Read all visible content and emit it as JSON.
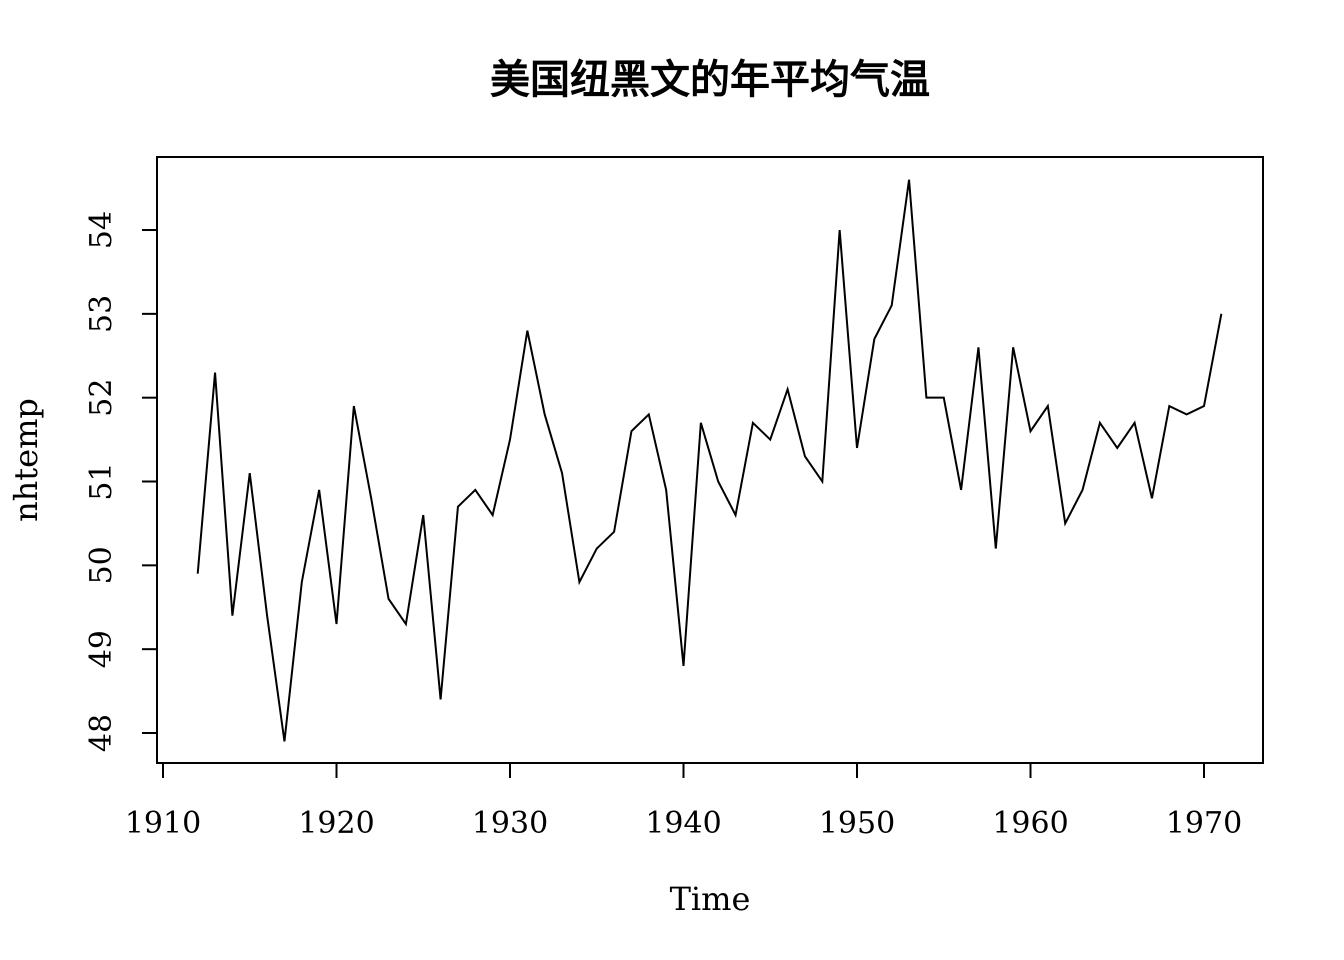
{
  "chart_data": {
    "type": "line",
    "title": "美国纽黑文的年平均气温",
    "xlabel": "Time",
    "ylabel": "nhtemp",
    "xlim": [
      1912,
      1971
    ],
    "ylim": [
      47.9,
      54.6
    ],
    "x_ticks": [
      "1910",
      "1920",
      "1930",
      "1940",
      "1950",
      "1960",
      "1970"
    ],
    "y_ticks": [
      "48",
      "49",
      "50",
      "51",
      "52",
      "53",
      "54"
    ],
    "grid": false,
    "series": [
      {
        "x": [
          1912,
          1913,
          1914,
          1915,
          1916,
          1917,
          1918,
          1919,
          1920,
          1921,
          1922,
          1923,
          1924,
          1925,
          1926,
          1927,
          1928,
          1929,
          1930,
          1931,
          1932,
          1933,
          1934,
          1935,
          1936,
          1937,
          1938,
          1939,
          1940,
          1941,
          1942,
          1943,
          1944,
          1945,
          1946,
          1947,
          1948,
          1949,
          1950,
          1951,
          1952,
          1953,
          1954,
          1955,
          1956,
          1957,
          1958,
          1959,
          1960,
          1961,
          1962,
          1963,
          1964,
          1965,
          1966,
          1967,
          1968,
          1969,
          1970,
          1971
        ],
        "values": [
          49.9,
          52.3,
          49.4,
          51.1,
          49.4,
          47.9,
          49.8,
          50.9,
          49.3,
          51.9,
          50.8,
          49.6,
          49.3,
          50.6,
          48.4,
          50.7,
          50.9,
          50.6,
          51.5,
          52.8,
          51.8,
          51.1,
          49.8,
          50.2,
          50.4,
          51.6,
          51.8,
          50.9,
          48.8,
          51.7,
          51.0,
          50.6,
          51.7,
          51.5,
          52.1,
          51.3,
          51.0,
          54.0,
          51.4,
          52.7,
          53.1,
          54.6,
          52.0,
          52.0,
          50.9,
          52.6,
          50.2,
          52.6,
          51.6,
          51.9,
          50.5,
          50.9,
          51.7,
          51.4,
          51.7,
          50.8,
          51.9,
          51.8,
          51.9,
          53.0
        ]
      }
    ]
  }
}
